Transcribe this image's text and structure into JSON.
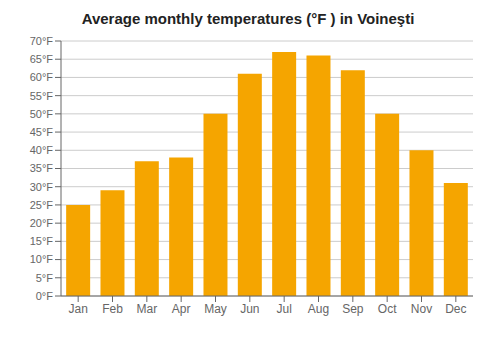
{
  "chart_data": {
    "type": "bar",
    "title": "Average monthly temperatures (°F ) in Voineşti",
    "categories": [
      "Jan",
      "Feb",
      "Mar",
      "Apr",
      "May",
      "Jun",
      "Jul",
      "Aug",
      "Sep",
      "Oct",
      "Nov",
      "Dec"
    ],
    "values": [
      25,
      29,
      37,
      38,
      50,
      61,
      67,
      66,
      62,
      50,
      40,
      31
    ],
    "color": "#F5A500",
    "ylim": [
      0,
      70
    ],
    "yticks": [
      {
        "value": 0,
        "label": "0°F"
      },
      {
        "value": 5,
        "label": "5°F"
      },
      {
        "value": 10,
        "label": "10°F"
      },
      {
        "value": 15,
        "label": "15°F"
      },
      {
        "value": 20,
        "label": "20°F"
      },
      {
        "value": 25,
        "label": "25°F"
      },
      {
        "value": 30,
        "label": "30°F"
      },
      {
        "value": 35,
        "label": "35°F"
      },
      {
        "value": 40,
        "label": "40°F"
      },
      {
        "value": 45,
        "label": "45°F"
      },
      {
        "value": 50,
        "label": "50°F"
      },
      {
        "value": 55,
        "label": "55°F"
      },
      {
        "value": 60,
        "label": "60°F"
      },
      {
        "value": 65,
        "label": "65°F"
      },
      {
        "value": 70,
        "label": "70°F"
      }
    ],
    "grid": true
  }
}
